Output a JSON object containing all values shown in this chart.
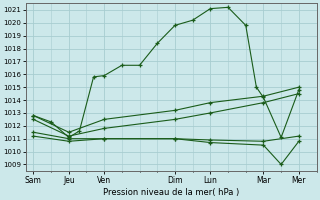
{
  "background_color": "#cce8ea",
  "grid_color": "#a8cdd0",
  "line_color": "#1a5c1a",
  "x_labels": [
    "Sam",
    "Jeu",
    "Ven",
    "Dim",
    "Lun",
    "Mar",
    "Mer"
  ],
  "x_positions": [
    0,
    1,
    2,
    4,
    5,
    6.5,
    7.5
  ],
  "xlim": [
    -0.2,
    8.0
  ],
  "ylim": [
    1008.5,
    1021.5
  ],
  "yticks": [
    1009,
    1010,
    1011,
    1012,
    1013,
    1014,
    1015,
    1016,
    1017,
    1018,
    1019,
    1020,
    1021
  ],
  "xlabel": "Pression niveau de la mer( hPa )",
  "lines": [
    {
      "x": [
        0,
        0.5,
        1,
        1.3,
        1.7,
        2,
        2.5,
        3,
        3.5,
        4,
        4.5,
        5,
        5.5,
        6,
        6.3,
        6.5,
        7,
        7.5
      ],
      "y": [
        1012.8,
        1012.3,
        1011.1,
        1011.6,
        1015.8,
        1015.9,
        1016.7,
        1016.7,
        1018.4,
        1019.8,
        1020.2,
        1021.1,
        1021.2,
        1019.8,
        1015.0,
        1014.2,
        1011.1,
        1014.8
      ]
    },
    {
      "x": [
        0,
        1,
        2,
        4,
        5,
        6.5,
        7.5
      ],
      "y": [
        1012.8,
        1011.5,
        1012.5,
        1013.2,
        1013.8,
        1014.3,
        1015.0
      ]
    },
    {
      "x": [
        0,
        1,
        2,
        4,
        5,
        6.5,
        7.5
      ],
      "y": [
        1012.5,
        1011.2,
        1011.8,
        1012.5,
        1013.0,
        1013.8,
        1014.5
      ]
    },
    {
      "x": [
        0,
        1,
        2,
        4,
        5,
        6.5,
        7.5
      ],
      "y": [
        1011.5,
        1011.0,
        1011.0,
        1011.0,
        1010.9,
        1010.8,
        1011.2
      ]
    },
    {
      "x": [
        0,
        1,
        2,
        4,
        5,
        6.5,
        7.0,
        7.5
      ],
      "y": [
        1011.2,
        1010.8,
        1011.0,
        1011.0,
        1010.7,
        1010.5,
        1009.0,
        1010.8
      ]
    }
  ]
}
